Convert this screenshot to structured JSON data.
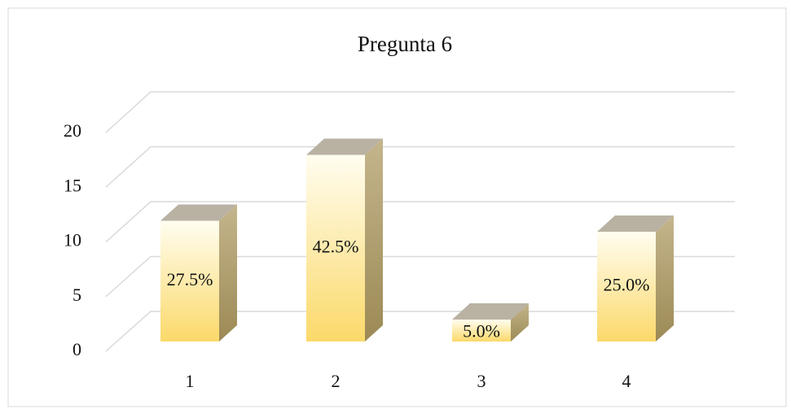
{
  "chart_data": {
    "type": "bar3d",
    "title": "Pregunta 6",
    "categories": [
      "1",
      "2",
      "3",
      "4"
    ],
    "values": [
      11,
      17,
      2,
      10
    ],
    "value_labels": [
      "27.5%",
      "42.5%",
      "5.0%",
      "25.0%"
    ],
    "ylim": [
      0,
      20
    ],
    "yticks": [
      0,
      5,
      10,
      15,
      20
    ],
    "grid": true
  }
}
